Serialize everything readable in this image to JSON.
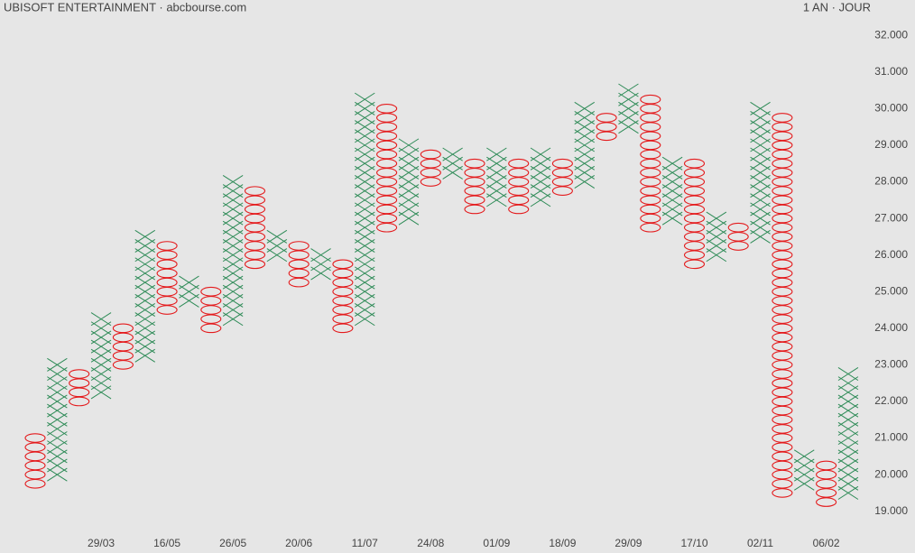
{
  "chart_data": {
    "type": "pointfigure",
    "title": "UBISOFT ENTERTAINMENT · abcbourse.com",
    "subtitle": "1 AN · JOUR",
    "box_size": 0.25,
    "x_color": "#2e8b57",
    "o_color": "#e41a1c",
    "categories": [
      null,
      null,
      null,
      "29/03",
      null,
      null,
      "16/05",
      null,
      null,
      "26/05",
      null,
      null,
      "20/06",
      null,
      null,
      "11/07",
      null,
      null,
      "24/08",
      null,
      null,
      "01/09",
      null,
      null,
      "18/09",
      null,
      null,
      "29/09",
      null,
      null,
      "17/10",
      null,
      null,
      "02/11",
      null,
      null,
      "06/02",
      null
    ],
    "columns": [
      {
        "kind": "O",
        "high": 21.0,
        "low": 19.75
      },
      {
        "kind": "X",
        "high": 23.0,
        "low": 20.0
      },
      {
        "kind": "O",
        "high": 22.75,
        "low": 22.0
      },
      {
        "kind": "X",
        "high": 24.25,
        "low": 22.25
      },
      {
        "kind": "O",
        "high": 24.0,
        "low": 23.0
      },
      {
        "kind": "X",
        "high": 26.5,
        "low": 23.25
      },
      {
        "kind": "O",
        "high": 26.25,
        "low": 24.5
      },
      {
        "kind": "X",
        "high": 25.25,
        "low": 24.75
      },
      {
        "kind": "O",
        "high": 25.0,
        "low": 24.0
      },
      {
        "kind": "X",
        "high": 28.0,
        "low": 24.25
      },
      {
        "kind": "O",
        "high": 27.75,
        "low": 25.75
      },
      {
        "kind": "X",
        "high": 26.5,
        "low": 26.0
      },
      {
        "kind": "O",
        "high": 26.25,
        "low": 25.25
      },
      {
        "kind": "X",
        "high": 26.0,
        "low": 25.5
      },
      {
        "kind": "O",
        "high": 25.75,
        "low": 24.0
      },
      {
        "kind": "X",
        "high": 30.25,
        "low": 24.25
      },
      {
        "kind": "O",
        "high": 30.0,
        "low": 26.75
      },
      {
        "kind": "X",
        "high": 29.0,
        "low": 27.0
      },
      {
        "kind": "O",
        "high": 28.75,
        "low": 28.0
      },
      {
        "kind": "X",
        "high": 28.75,
        "low": 28.25
      },
      {
        "kind": "O",
        "high": 28.5,
        "low": 27.25
      },
      {
        "kind": "X",
        "high": 28.75,
        "low": 27.5
      },
      {
        "kind": "O",
        "high": 28.5,
        "low": 27.25
      },
      {
        "kind": "X",
        "high": 28.75,
        "low": 27.5
      },
      {
        "kind": "O",
        "high": 28.5,
        "low": 27.75
      },
      {
        "kind": "X",
        "high": 30.0,
        "low": 28.0
      },
      {
        "kind": "O",
        "high": 29.75,
        "low": 29.25
      },
      {
        "kind": "X",
        "high": 30.5,
        "low": 29.5
      },
      {
        "kind": "O",
        "high": 30.25,
        "low": 26.75
      },
      {
        "kind": "X",
        "high": 28.5,
        "low": 27.0
      },
      {
        "kind": "O",
        "high": 28.5,
        "low": 25.75
      },
      {
        "kind": "X",
        "high": 27.0,
        "low": 26.0
      },
      {
        "kind": "O",
        "high": 26.75,
        "low": 26.25
      },
      {
        "kind": "X",
        "high": 30.0,
        "low": 26.5
      },
      {
        "kind": "O",
        "high": 29.75,
        "low": 19.5
      },
      {
        "kind": "X",
        "high": 20.5,
        "low": 19.75
      },
      {
        "kind": "O",
        "high": 20.25,
        "low": 19.25
      },
      {
        "kind": "X",
        "high": 22.75,
        "low": 19.5
      }
    ],
    "ylim": [
      18.5,
      32.35
    ],
    "yticks": [
      {
        "value": 19,
        "label": "19.000"
      },
      {
        "value": 20,
        "label": "20.000"
      },
      {
        "value": 21,
        "label": "21.000"
      },
      {
        "value": 22,
        "label": "22.000"
      },
      {
        "value": 23,
        "label": "23.000"
      },
      {
        "value": 24,
        "label": "24.000"
      },
      {
        "value": 25,
        "label": "25.000"
      },
      {
        "value": 26,
        "label": "26.000"
      },
      {
        "value": 27,
        "label": "27.000"
      },
      {
        "value": 28,
        "label": "28.000"
      },
      {
        "value": 29,
        "label": "29.000"
      },
      {
        "value": 30,
        "label": "30.000"
      },
      {
        "value": 31,
        "label": "31.000"
      },
      {
        "value": 32,
        "label": "32.000"
      }
    ]
  }
}
